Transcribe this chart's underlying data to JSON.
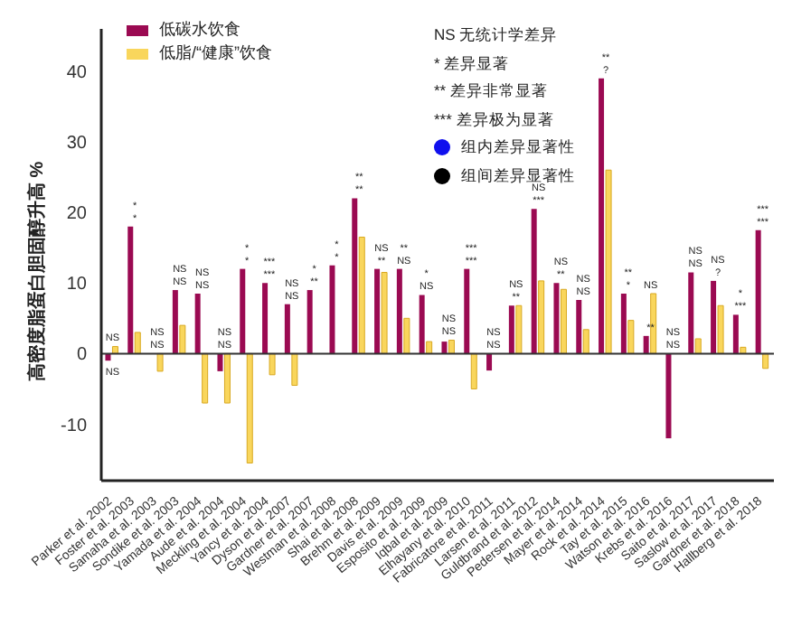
{
  "chart_data": {
    "type": "bar",
    "ylabel": "高密度脂蛋白胆固醇升高 %",
    "categories": [
      "Parker et al. 2002",
      "Foster et al. 2003",
      "Samaha et al. 2003",
      "Sondike et al. 2003",
      "Yamada et al. 2004",
      "Aude et al. 2004",
      "Meckling et al. 2004",
      "Yancy et al. 2004",
      "Dyson et al. 2007",
      "Gardner et al. 2007",
      "Westman et al. 2008",
      "Shai et al. 2008",
      "Brehm et al. 2009",
      "Davis et al. 2009",
      "Esposito et al. 2009",
      "Iqbal et al. 2009",
      "Elhayany et al. 2010",
      "Fabricatore et al. 2011",
      "Larsen et al. 2011",
      "Guldbrand et al. 2012",
      "Pedersen et al. 2014",
      "Mayer et al. 2014",
      "Rock et al. 2014",
      "Tay et al. 2015",
      "Watson et al. 2016",
      "Krebs et al. 2016",
      "Saito et al. 2017",
      "Saslow et al. 2017",
      "Gardner et al. 2018",
      "Hallberg et al. 2018"
    ],
    "series": [
      {
        "name": "低碳水饮食",
        "color": "#9b0a52",
        "values": [
          -1,
          18,
          null,
          9,
          8.5,
          -2.5,
          12,
          10,
          7,
          9,
          12.5,
          22,
          12,
          12,
          8.3,
          1.7,
          12,
          -2.4,
          6.8,
          20.5,
          10,
          7.6,
          39,
          8.5,
          2.5,
          -12,
          11.5,
          10.3,
          5.5,
          17.5
        ]
      },
      {
        "name": "低脂/“健康”饮食",
        "color": "#f9d65c",
        "values": [
          1,
          3,
          -2.5,
          4,
          -7,
          -7,
          -15.5,
          -3,
          -4.5,
          null,
          null,
          16.5,
          11.5,
          5,
          1.7,
          1.9,
          -5,
          null,
          6.8,
          10.3,
          9.1,
          3.4,
          26,
          4.7,
          8.5,
          null,
          2.1,
          6.8,
          0.9,
          -2.1
        ]
      }
    ],
    "ylim": [
      -18,
      46
    ],
    "yticks": [
      -10,
      0,
      10,
      20,
      30,
      40
    ],
    "legend": "top left",
    "ref_lines": [
      {
        "axis": "y",
        "value": 0
      }
    ],
    "annotations": [
      "NS 无统计学差异",
      "* 差异显著",
      "** 差异非常显著",
      "*** 差异极为显著",
      "组内差异显著性",
      "组间差异显著性",
      {
        "text": "NS",
        "x": "Parker et al. 2002",
        "y": -1
      },
      {
        "text": "NS",
        "x": "Parker et al. 2002",
        "y": 1
      },
      {
        "text": "*",
        "x": "Foster et al. 2003",
        "y": 18
      },
      {
        "text": "*",
        "x": "Foster et al. 2003",
        "y": 18
      },
      {
        "text": "NS",
        "x": "Samaha et al. 2003",
        "y": 0
      },
      {
        "text": "NS",
        "x": "Samaha et al. 2003",
        "y": 0
      },
      {
        "text": "NS",
        "x": "Sondike et al. 2003",
        "y": 9
      },
      {
        "text": "NS",
        "x": "Sondike et al. 2003",
        "y": 9
      },
      {
        "text": "NS",
        "x": "Yamada et al. 2004",
        "y": 8.5
      },
      {
        "text": "NS",
        "x": "Yamada et al. 2004",
        "y": 8.5
      },
      {
        "text": "NS",
        "x": "Aude et al. 2004",
        "y": 0
      },
      {
        "text": "NS",
        "x": "Aude et al. 2004",
        "y": 0
      },
      {
        "text": "*",
        "x": "Meckling et al. 2004",
        "y": 12
      },
      {
        "text": "*",
        "x": "Meckling et al. 2004",
        "y": 12
      },
      {
        "text": "***",
        "x": "Yancy et al. 2004",
        "y": 10
      },
      {
        "text": "***",
        "x": "Yancy et al. 2004",
        "y": 10
      },
      {
        "text": "NS",
        "x": "Dyson et al. 2007",
        "y": 7
      },
      {
        "text": "NS",
        "x": "Dyson et al. 2007",
        "y": 7
      },
      {
        "text": "**",
        "x": "Gardner et al. 2007",
        "y": 9
      },
      {
        "text": "*",
        "x": "Gardner et al. 2007",
        "y": 9
      },
      {
        "text": "*",
        "x": "Westman et al. 2008",
        "y": 12.5
      },
      {
        "text": "*",
        "x": "Westman et al. 2008",
        "y": 12.5
      },
      {
        "text": "**",
        "x": "Shai et al. 2008",
        "y": 22
      },
      {
        "text": "**",
        "x": "Shai et al. 2008",
        "y": 22
      },
      {
        "text": "**",
        "x": "Brehm et al. 2009",
        "y": 12
      },
      {
        "text": "NS",
        "x": "Brehm et al. 2009",
        "y": 12
      },
      {
        "text": "NS",
        "x": "Davis et al. 2009",
        "y": 12
      },
      {
        "text": "**",
        "x": "Davis et al. 2009",
        "y": 12
      },
      {
        "text": "NS",
        "x": "Esposito et al. 2009",
        "y": 8.3
      },
      {
        "text": "*",
        "x": "Esposito et al. 2009",
        "y": 8.3
      },
      {
        "text": "NS",
        "x": "Iqbal et al. 2009",
        "y": 1.9
      },
      {
        "text": "NS",
        "x": "Iqbal et al. 2009",
        "y": 1.9
      },
      {
        "text": "***",
        "x": "Elhayany et al. 2010",
        "y": 12
      },
      {
        "text": "***",
        "x": "Elhayany et al. 2010",
        "y": 12
      },
      {
        "text": "NS",
        "x": "Fabricatore et al. 2011",
        "y": 0
      },
      {
        "text": "NS",
        "x": "Fabricatore et al. 2011",
        "y": 0
      },
      {
        "text": "**",
        "x": "Larsen et al. 2011",
        "y": 6.8
      },
      {
        "text": "NS",
        "x": "Larsen et al. 2011",
        "y": 6.8
      },
      {
        "text": "***",
        "x": "Guldbrand et al. 2012",
        "y": 20.5
      },
      {
        "text": "NS",
        "x": "Guldbrand et al. 2012",
        "y": 20.5
      },
      {
        "text": "**",
        "x": "Pedersen et al. 2014",
        "y": 10
      },
      {
        "text": "NS",
        "x": "Pedersen et al. 2014",
        "y": 10
      },
      {
        "text": "NS",
        "x": "Mayer et al. 2014",
        "y": 7.6
      },
      {
        "text": "NS",
        "x": "Mayer et al. 2014",
        "y": 7.6
      },
      {
        "text": "?",
        "x": "Rock et al. 2014",
        "y": 39
      },
      {
        "text": "**",
        "x": "Rock et al. 2014",
        "y": 39
      },
      {
        "text": "*",
        "x": "Tay et al. 2015",
        "y": 8.5
      },
      {
        "text": "**",
        "x": "Tay et al. 2015",
        "y": 8.5
      },
      {
        "text": "**",
        "x": "Watson et al. 2016",
        "y": 2.5
      },
      {
        "text": "NS",
        "x": "Watson et al. 2016",
        "y": 8.5
      },
      {
        "text": "NS",
        "x": "Krebs et al. 2016",
        "y": 0
      },
      {
        "text": "NS",
        "x": "Krebs et al. 2016",
        "y": 0
      },
      {
        "text": "NS",
        "x": "Saito et al. 2017",
        "y": 11.5
      },
      {
        "text": "NS",
        "x": "Saito et al. 2017",
        "y": 11.5
      },
      {
        "text": "?",
        "x": "Saslow et al. 2017",
        "y": 10.3
      },
      {
        "text": "NS",
        "x": "Saslow et al. 2017",
        "y": 10.3
      },
      {
        "text": "***",
        "x": "Gardner et al. 2018",
        "y": 5.5
      },
      {
        "text": "*",
        "x": "Gardner et al. 2018",
        "y": 5.5
      },
      {
        "text": "***",
        "x": "Hallberg et al. 2018",
        "y": 17.5
      },
      {
        "text": "***",
        "x": "Hallberg et al. 2018",
        "y": 17.5
      }
    ]
  }
}
